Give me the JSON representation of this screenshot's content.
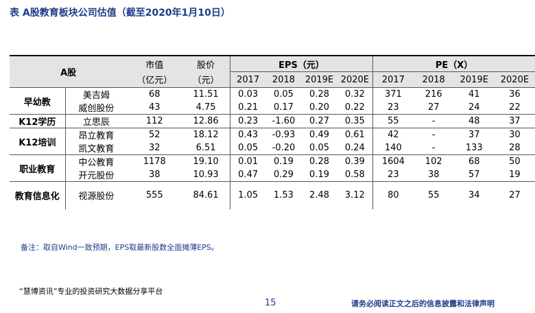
{
  "title": "表 A股教育板块公司估值（截至2020年1月10日）",
  "table": {
    "header": {
      "group": "A股",
      "cap": [
        "市值",
        "（亿元）"
      ],
      "price": [
        "股价",
        "（元）"
      ],
      "eps": "EPS（元）",
      "pe": "PE（X）",
      "eps_years": [
        "2017",
        "2018",
        "2019E",
        "2020E"
      ],
      "pe_years": [
        "2017",
        "2018",
        "2019E",
        "2020E"
      ]
    },
    "groups": [
      {
        "name": "早幼教",
        "rows": [
          [
            "美吉姆",
            "68",
            "11.51",
            "0.03",
            "0.05",
            "0.28",
            "0.32",
            "371",
            "216",
            "41",
            "36"
          ],
          [
            "威创股份",
            "43",
            "4.75",
            "0.21",
            "0.17",
            "0.20",
            "0.22",
            "23",
            "27",
            "24",
            "22"
          ]
        ]
      },
      {
        "name": "K12学历",
        "rows": [
          [
            "立思辰",
            "112",
            "12.86",
            "0.23",
            "-1.60",
            "0.27",
            "0.35",
            "55",
            "-",
            "48",
            "37"
          ]
        ]
      },
      {
        "name": "K12培训",
        "rows": [
          [
            "昂立教育",
            "52",
            "18.12",
            "0.43",
            "-0.93",
            "0.49",
            "0.61",
            "42",
            "-",
            "37",
            "30"
          ],
          [
            "凯文教育",
            "32",
            "6.51",
            "0.05",
            "-0.20",
            "0.05",
            "0.24",
            "140",
            "-",
            "133",
            "28"
          ]
        ]
      },
      {
        "name": "职业教育",
        "rows": [
          [
            "中公教育",
            "1178",
            "19.10",
            "0.01",
            "0.19",
            "0.28",
            "0.39",
            "1604",
            "102",
            "68",
            "50"
          ],
          [
            "开元股份",
            "38",
            "10.93",
            "0.47",
            "0.29",
            "0.19",
            "0.58",
            "23",
            "38",
            "57",
            "19"
          ]
        ]
      },
      {
        "name": "教育信息化",
        "rows": [
          [
            "视源股份",
            "555",
            "84.61",
            "1.05",
            "1.53",
            "2.48",
            "3.12",
            "80",
            "55",
            "34",
            "27"
          ]
        ]
      }
    ]
  },
  "note": "备注：取自Wind一致预期，EPS取最新股数全面摊薄EPS。",
  "footer": {
    "left": "“慧博资讯”专业的投资研究大数据分享平台",
    "page": "15",
    "right": "请务必阅读正文之后的信息披露和法律声明"
  }
}
